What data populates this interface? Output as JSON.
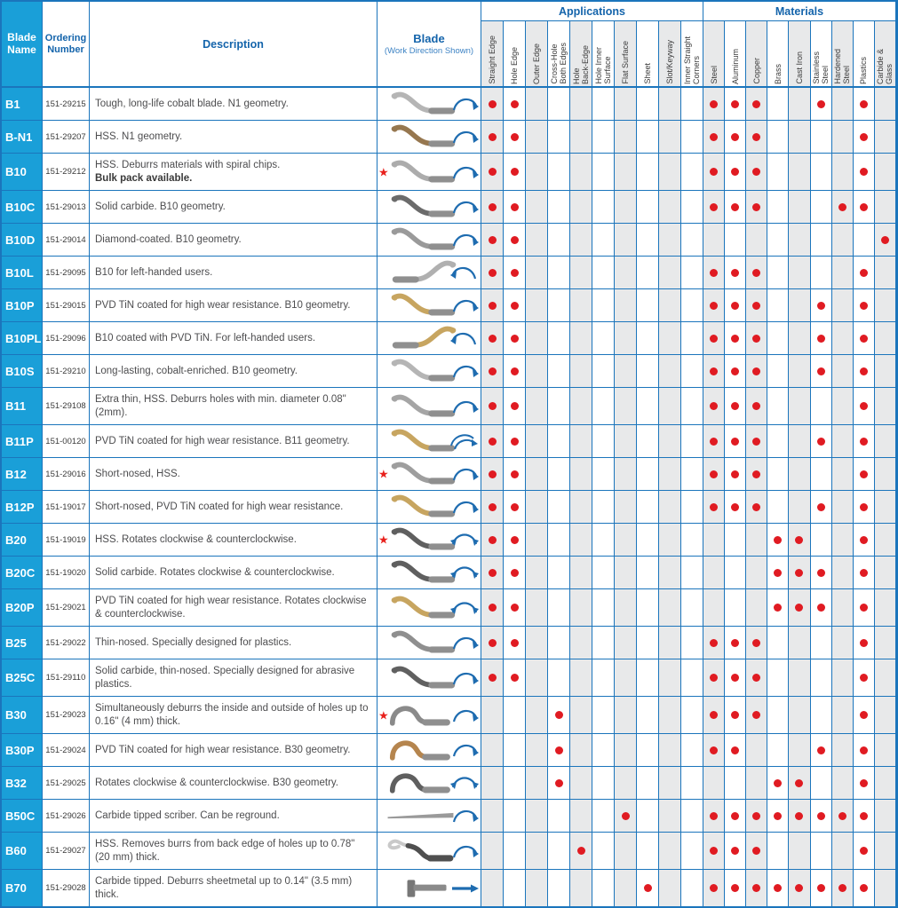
{
  "header": {
    "blade_name": "Blade Name",
    "ordering_number": "Ordering Number",
    "description": "Description",
    "blade": "Blade",
    "blade_sub": "(Work Direction Shown)",
    "applications": "Applications",
    "materials": "Materials",
    "app_columns": [
      "Straight Edge",
      "Hole Edge",
      "Outer Edge",
      "Cross-Hole\nBoth Edges",
      "Hole\nBack-Edge",
      "Hole Inner\nSurface",
      "Flat Surface",
      "Sheet",
      "Slot/Keyway",
      "Inner Straight\nCorners"
    ],
    "material_columns": [
      "Steel",
      "Aluminum",
      "Copper",
      "Brass",
      "Cast Iron",
      "Stainless\nSteel",
      "Hardened\nSteel",
      "Plastics",
      "Carbide &\nGlass"
    ]
  },
  "colors": {
    "grid_blue": "#1b75bc",
    "header_text_blue": "#1464ab",
    "name_cell_blue": "#1a9fd8",
    "dot_red": "#e01b22",
    "star_red": "#e8201c",
    "shade_gray": "#e8e9ea",
    "arrow_blue": "#1e6cb0"
  },
  "rows": [
    {
      "name": "B1",
      "order": "151-29215",
      "desc": "Tough, long-life cobalt blade. N1 geometry.",
      "star": false,
      "blade": "s",
      "bladeColor": "#b5b5b5",
      "arrow": "cw",
      "apps": [
        0,
        1
      ],
      "mats": [
        0,
        1,
        2,
        5,
        7
      ],
      "tall": false
    },
    {
      "name": "B-N1",
      "order": "151-29207",
      "desc": "HSS. N1 geometry.",
      "star": false,
      "blade": "s",
      "bladeColor": "#96774f",
      "arrow": "cw",
      "apps": [
        0,
        1
      ],
      "mats": [
        0,
        1,
        2,
        7
      ],
      "tall": false
    },
    {
      "name": "B10",
      "order": "151-29212",
      "desc": "HSS. Deburrs materials with spiral chips.",
      "desc_bold": "Bulk pack available.",
      "star": true,
      "blade": "s",
      "bladeColor": "#acacac",
      "arrow": "cw",
      "apps": [
        0,
        1
      ],
      "mats": [
        0,
        1,
        2,
        7
      ],
      "tall": true
    },
    {
      "name": "B10C",
      "order": "151-29013",
      "desc": "Solid carbide. B10 geometry.",
      "star": false,
      "blade": "s",
      "bladeColor": "#6b6b6b",
      "arrow": "cw",
      "apps": [
        0,
        1
      ],
      "mats": [
        0,
        1,
        2,
        6,
        7
      ],
      "tall": false
    },
    {
      "name": "B10D",
      "order": "151-29014",
      "desc": "Diamond-coated. B10 geometry.",
      "star": false,
      "blade": "s",
      "bladeColor": "#9a9a9a",
      "arrow": "cw",
      "apps": [
        0,
        1
      ],
      "mats": [
        8
      ],
      "tall": false
    },
    {
      "name": "B10L",
      "order": "151-29095",
      "desc": "B10 for left-handed users.",
      "star": false,
      "blade": "sl",
      "bladeColor": "#b0b0b0",
      "arrow": "ccw",
      "apps": [
        0,
        1
      ],
      "mats": [
        0,
        1,
        2,
        7
      ],
      "tall": false
    },
    {
      "name": "B10P",
      "order": "151-29015",
      "desc": "PVD TiN coated for high wear resistance. B10 geometry.",
      "star": false,
      "blade": "s",
      "bladeColor": "#c7a560",
      "arrow": "cw",
      "apps": [
        0,
        1
      ],
      "mats": [
        0,
        1,
        2,
        5,
        7
      ],
      "tall": false
    },
    {
      "name": "B10PL",
      "order": "151-29096",
      "desc": "B10 coated with PVD TiN. For left-handed users.",
      "star": false,
      "blade": "sl",
      "bladeColor": "#c7a560",
      "arrow": "ccw",
      "apps": [
        0,
        1
      ],
      "mats": [
        0,
        1,
        2,
        5,
        7
      ],
      "tall": false
    },
    {
      "name": "B10S",
      "order": "151-29210",
      "desc": "Long-lasting, cobalt-enriched. B10 geometry.",
      "star": false,
      "blade": "s",
      "bladeColor": "#b5b5b5",
      "arrow": "cw",
      "apps": [
        0,
        1
      ],
      "mats": [
        0,
        1,
        2,
        5,
        7
      ],
      "tall": false
    },
    {
      "name": "B11",
      "order": "151-29108",
      "desc": "Extra thin, HSS. Deburrs holes with min. diameter 0.08\" (2mm).",
      "star": false,
      "blade": "s",
      "bladeColor": "#a5a5a5",
      "arrow": "cw",
      "apps": [
        0,
        1
      ],
      "mats": [
        0,
        1,
        2,
        7
      ],
      "tall": true
    },
    {
      "name": "B11P",
      "order": "151-00120",
      "desc": "PVD TiN coated for high wear resistance. B11 geometry.",
      "star": false,
      "blade": "s",
      "bladeColor": "#c7a560",
      "arrow": "cw2",
      "apps": [
        0,
        1
      ],
      "mats": [
        0,
        1,
        2,
        5,
        7
      ],
      "tall": false
    },
    {
      "name": "B12",
      "order": "151-29016",
      "desc": "Short-nosed, HSS.",
      "star": true,
      "blade": "s",
      "bladeColor": "#9e9e9e",
      "arrow": "cw",
      "apps": [
        0,
        1
      ],
      "mats": [
        0,
        1,
        2,
        7
      ],
      "tall": false
    },
    {
      "name": "B12P",
      "order": "151-19017",
      "desc": "Short-nosed, PVD TiN coated for high wear resistance.",
      "star": false,
      "blade": "s",
      "bladeColor": "#c7a560",
      "arrow": "cw",
      "apps": [
        0,
        1
      ],
      "mats": [
        0,
        1,
        2,
        5,
        7
      ],
      "tall": false
    },
    {
      "name": "B20",
      "order": "151-19019",
      "desc": "HSS. Rotates clockwise & counterclockwise.",
      "star": true,
      "blade": "s",
      "bladeColor": "#5f5f5f",
      "arrow": "both",
      "apps": [
        0,
        1
      ],
      "mats": [
        3,
        4,
        7
      ],
      "tall": false
    },
    {
      "name": "B20C",
      "order": "151-19020",
      "desc": "Solid carbide. Rotates clockwise & counterclockwise.",
      "star": false,
      "blade": "s",
      "bladeColor": "#5f5f5f",
      "arrow": "both",
      "apps": [
        0,
        1
      ],
      "mats": [
        3,
        4,
        5,
        7
      ],
      "tall": false
    },
    {
      "name": "B20P",
      "order": "151-29021",
      "desc": "PVD TiN coated for high wear resistance. Rotates clockwise & counterclockwise.",
      "star": false,
      "blade": "s",
      "bladeColor": "#c7a560",
      "arrow": "both",
      "apps": [
        0,
        1
      ],
      "mats": [
        3,
        4,
        5,
        7
      ],
      "tall": true
    },
    {
      "name": "B25",
      "order": "151-29022",
      "desc": "Thin-nosed. Specially designed for plastics.",
      "star": false,
      "blade": "s",
      "bladeColor": "#8f8f8f",
      "arrow": "cw",
      "apps": [
        0,
        1
      ],
      "mats": [
        0,
        1,
        2,
        7
      ],
      "tall": false
    },
    {
      "name": "B25C",
      "order": "151-29110",
      "desc": "Solid carbide, thin-nosed. Specially designed for abrasive plastics.",
      "star": false,
      "blade": "s",
      "bladeColor": "#606060",
      "arrow": "cw",
      "apps": [
        0,
        1
      ],
      "mats": [
        0,
        1,
        2,
        7
      ],
      "tall": true
    },
    {
      "name": "B30",
      "order": "151-29023",
      "desc": "Simultaneously deburrs the inside and outside of holes up to 0.16\" (4 mm) thick.",
      "star": true,
      "blade": "hook",
      "bladeColor": "#8a8a8a",
      "arrow": "cw",
      "apps": [
        3
      ],
      "mats": [
        0,
        1,
        2,
        7
      ],
      "tall": true
    },
    {
      "name": "B30P",
      "order": "151-29024",
      "desc": "PVD TiN coated for high wear resistance. B30 geometry.",
      "star": false,
      "blade": "hook",
      "bladeColor": "#b5854e",
      "arrow": "cw",
      "apps": [
        3
      ],
      "mats": [
        0,
        1,
        5,
        7
      ],
      "tall": false
    },
    {
      "name": "B32",
      "order": "151-29025",
      "desc": "Rotates clockwise & counterclockwise. B30 geometry.",
      "star": false,
      "blade": "hook",
      "bladeColor": "#5f5f5f",
      "arrow": "both",
      "apps": [
        3
      ],
      "mats": [
        3,
        4,
        7
      ],
      "tall": false
    },
    {
      "name": "B50C",
      "order": "151-29026",
      "desc": "Carbide tipped scriber. Can be reground.",
      "star": false,
      "blade": "straight",
      "bladeColor": "#9a9a9a",
      "arrow": "cw",
      "apps": [
        6
      ],
      "mats": [
        0,
        1,
        2,
        3,
        4,
        5,
        6,
        7
      ],
      "tall": false
    },
    {
      "name": "B60",
      "order": "151-29027",
      "desc": "HSS. Removes burrs from back edge of holes up to 0.78\" (20 mm) thick.",
      "star": false,
      "blade": "hookback",
      "bladeColor": "#4f4f4f",
      "arrow": "cw",
      "apps": [
        4
      ],
      "mats": [
        0,
        1,
        2,
        7
      ],
      "tall": true
    },
    {
      "name": "B70",
      "order": "151-29028",
      "desc": "Carbide tipped. Deburrs sheetmetal up to 0.14\" (3.5 mm) thick.",
      "star": false,
      "blade": "lshape",
      "bladeColor": "#8a8a8a",
      "arrow": "straight",
      "apps": [
        7
      ],
      "mats": [
        0,
        1,
        2,
        3,
        4,
        5,
        6,
        7
      ],
      "tall": true
    }
  ]
}
